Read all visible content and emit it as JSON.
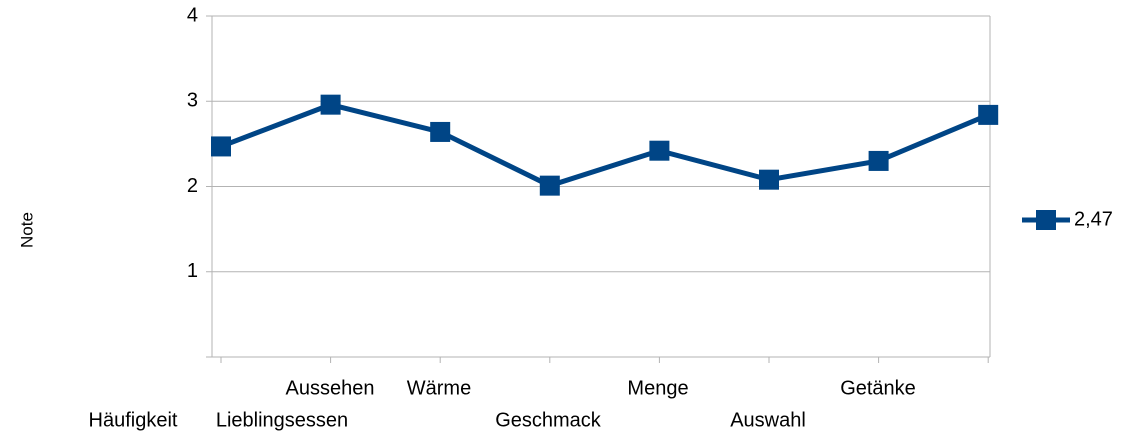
{
  "chart_data": {
    "type": "line",
    "y_label": "Note",
    "categories": [
      "Häufigkeit",
      "Aussehen",
      "Lieblingsessen",
      "Wärme",
      "Geschmack",
      "Menge",
      "Auswahl",
      "Getänke"
    ],
    "series": [
      {
        "name": "2,47",
        "color": "#004586",
        "values": [
          2.47,
          2.96,
          2.64,
          2.01,
          2.42,
          2.08,
          2.3,
          2.84
        ]
      }
    ],
    "ylim": [
      0,
      4
    ],
    "yticks": [
      1,
      2,
      3,
      4
    ],
    "grid": true,
    "legend": "right"
  }
}
